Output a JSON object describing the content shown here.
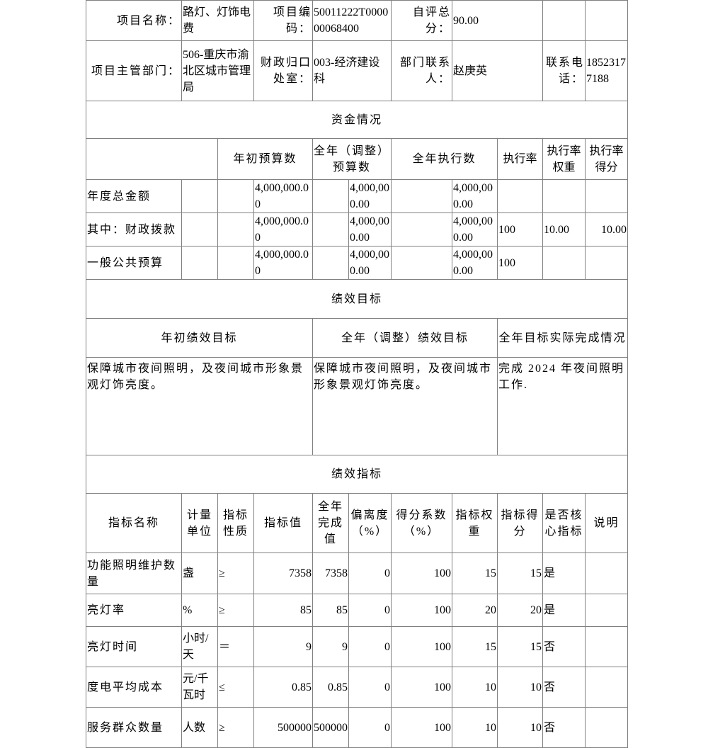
{
  "header": {
    "project_name_label": "项目名称：",
    "project_name": "路灯、灯饰电费",
    "project_code_label": "项目编码：",
    "project_code": "50011222T000000068400",
    "score_label": "自评总分：",
    "score": "90.00",
    "dept_label": "项目主管部门：",
    "dept": "506-重庆市渝北区城市管理局",
    "finance_label": "财政归口处室：",
    "finance": "003-经济建设科",
    "contact_label": "部门联系人：",
    "contact": "赵庚英",
    "phone_label": "联系电话：",
    "phone": "18523177188"
  },
  "funds": {
    "title": "资金情况",
    "headers": {
      "initial": "年初预算数",
      "adjusted": "全年（调整）预算数",
      "executed": "全年执行数",
      "rate": "执行率",
      "weight": "执行率权重",
      "score": "执行率得分"
    },
    "rows": [
      {
        "label": "年度总金额",
        "initial": "4,000,000.00",
        "adjusted": "4,000,000.00",
        "executed": "4,000,000.00",
        "rate": "",
        "weight": "",
        "score": ""
      },
      {
        "label": "其中：财政拨款",
        "initial": "4,000,000.00",
        "adjusted": "4,000,000.00",
        "executed": "4,000,000.00",
        "rate": "100",
        "weight": "10.00",
        "score": "10.00"
      },
      {
        "label": "一般公共预算",
        "initial": "4,000,000.00",
        "adjusted": "4,000,000.00",
        "executed": "4,000,000.00",
        "rate": "100",
        "weight": "",
        "score": ""
      }
    ]
  },
  "goals": {
    "title": "绩效目标",
    "headers": {
      "initial": "年初绩效目标",
      "adjusted": "全年（调整）绩效目标",
      "actual": "全年目标实际完成情况"
    },
    "initial": "保障城市夜间照明，及夜间城市形象景观灯饰亮度。",
    "adjusted": "保障城市夜间照明，及夜间城市形象景观灯饰亮度。",
    "actual": "完成 2024 年夜间照明工作."
  },
  "indicators": {
    "title": "绩效指标",
    "headers": {
      "name": "指标名称",
      "unit": "计量单位",
      "nature": "指标性质",
      "value": "指标值",
      "completed": "全年完成值",
      "deviation": "偏离度（%）",
      "coefficient": "得分系数（%）",
      "weight": "指标权重",
      "score": "指标得分",
      "core": "是否核心指标",
      "note": "说明"
    },
    "rows": [
      {
        "name": "功能照明维护数量",
        "unit": "盏",
        "nature": "≥",
        "value": "7358",
        "completed": "7358",
        "deviation": "0",
        "coefficient": "100",
        "weight": "15",
        "score": "15",
        "core": "是",
        "note": ""
      },
      {
        "name": "亮灯率",
        "unit": "%",
        "nature": "≥",
        "value": "85",
        "completed": "85",
        "deviation": "0",
        "coefficient": "100",
        "weight": "20",
        "score": "20",
        "core": "是",
        "note": ""
      },
      {
        "name": "亮灯时间",
        "unit": "小时/天",
        "nature": "＝",
        "value": "9",
        "completed": "9",
        "deviation": "0",
        "coefficient": "100",
        "weight": "15",
        "score": "15",
        "core": "否",
        "note": ""
      },
      {
        "name": "度电平均成本",
        "unit": "元/千瓦时",
        "nature": "≤",
        "value": "0.85",
        "completed": "0.85",
        "deviation": "0",
        "coefficient": "100",
        "weight": "10",
        "score": "10",
        "core": "否",
        "note": ""
      },
      {
        "name": "服务群众数量",
        "unit": "人数",
        "nature": "≥",
        "value": "500000",
        "completed": "500000",
        "deviation": "0",
        "coefficient": "100",
        "weight": "10",
        "score": "10",
        "core": "否",
        "note": ""
      }
    ]
  }
}
